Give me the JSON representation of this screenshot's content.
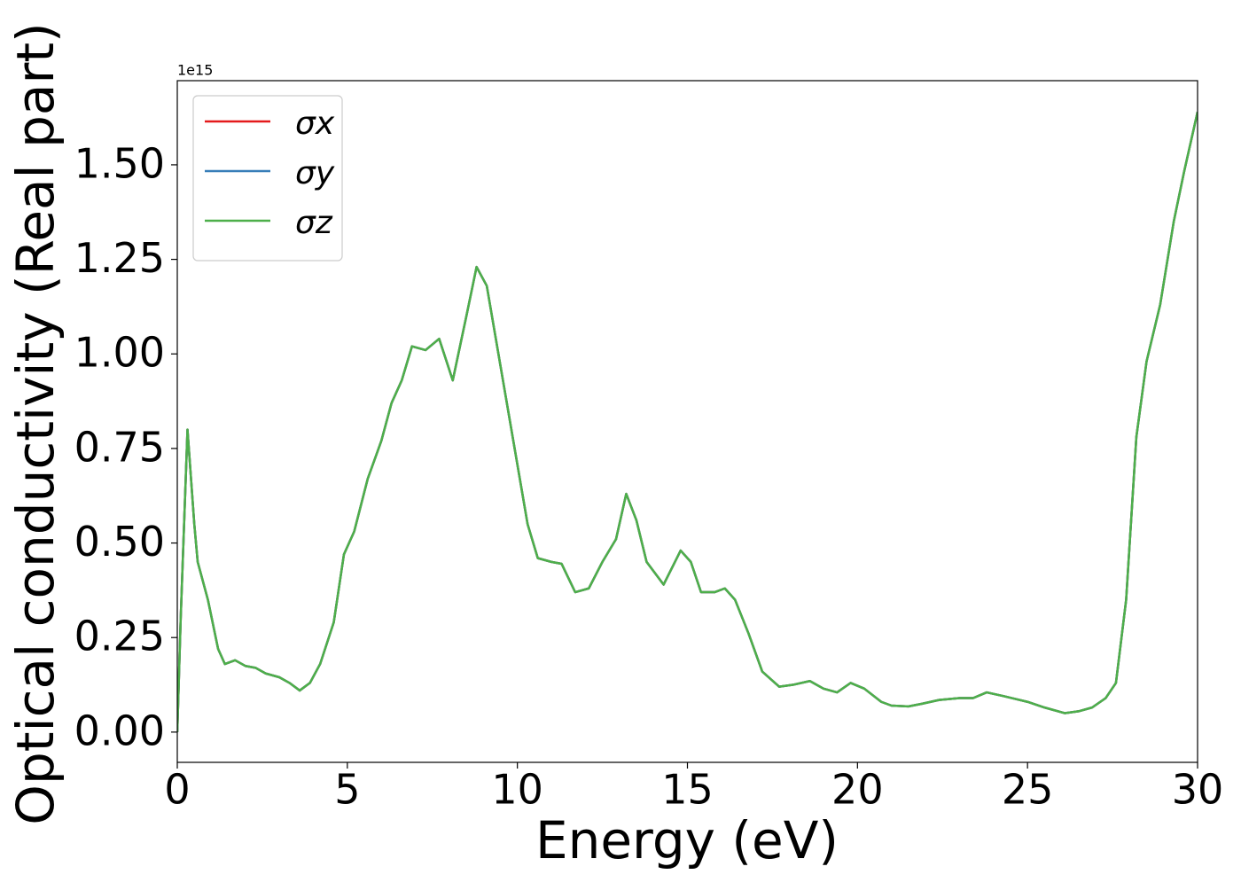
{
  "chart_data": {
    "type": "line",
    "xlabel": "Energy (eV)",
    "ylabel": "Optical conductivity (Real part)",
    "y_offset_label": "1e15",
    "x": [
      0,
      0.1,
      0.3,
      0.5,
      0.6,
      0.9,
      1.2,
      1.4,
      1.7,
      2.0,
      2.3,
      2.6,
      3.0,
      3.3,
      3.6,
      3.9,
      4.2,
      4.6,
      4.9,
      5.2,
      5.6,
      6.0,
      6.3,
      6.6,
      6.9,
      7.3,
      7.7,
      8.1,
      8.5,
      8.8,
      9.1,
      9.5,
      9.9,
      10.3,
      10.6,
      11.0,
      11.3,
      11.7,
      12.1,
      12.5,
      12.9,
      13.2,
      13.5,
      13.8,
      14.3,
      14.8,
      15.1,
      15.4,
      15.8,
      16.1,
      16.4,
      16.8,
      17.2,
      17.7,
      18.1,
      18.6,
      19.0,
      19.4,
      19.8,
      20.2,
      20.7,
      21.0,
      21.5,
      21.9,
      22.4,
      23.0,
      23.4,
      23.8,
      24.3,
      25.0,
      25.5,
      26.1,
      26.5,
      26.9,
      27.3,
      27.6,
      27.9,
      28.2,
      28.5,
      28.9,
      29.3,
      29.6,
      30.0
    ],
    "series": [
      {
        "name": "σx",
        "color": "#e41a1c",
        "values": [
          0.0,
          0.3,
          0.8,
          0.55,
          0.45,
          0.35,
          0.22,
          0.18,
          0.19,
          0.175,
          0.17,
          0.155,
          0.145,
          0.13,
          0.11,
          0.13,
          0.18,
          0.29,
          0.47,
          0.53,
          0.67,
          0.77,
          0.87,
          0.93,
          1.02,
          1.01,
          1.04,
          0.93,
          1.1,
          1.23,
          1.18,
          0.97,
          0.76,
          0.55,
          0.46,
          0.45,
          0.445,
          0.37,
          0.38,
          0.45,
          0.51,
          0.63,
          0.56,
          0.45,
          0.39,
          0.48,
          0.45,
          0.37,
          0.37,
          0.38,
          0.35,
          0.26,
          0.16,
          0.12,
          0.125,
          0.135,
          0.115,
          0.105,
          0.13,
          0.115,
          0.08,
          0.07,
          0.068,
          0.075,
          0.085,
          0.09,
          0.09,
          0.105,
          0.095,
          0.08,
          0.065,
          0.05,
          0.055,
          0.065,
          0.09,
          0.13,
          0.35,
          0.78,
          0.98,
          1.13,
          1.35,
          1.48,
          1.64
        ]
      },
      {
        "name": "σy",
        "color": "#377eb8",
        "values": [
          0.0,
          0.3,
          0.8,
          0.55,
          0.45,
          0.35,
          0.22,
          0.18,
          0.19,
          0.175,
          0.17,
          0.155,
          0.145,
          0.13,
          0.11,
          0.13,
          0.18,
          0.29,
          0.47,
          0.53,
          0.67,
          0.77,
          0.87,
          0.93,
          1.02,
          1.01,
          1.04,
          0.93,
          1.1,
          1.23,
          1.18,
          0.97,
          0.76,
          0.55,
          0.46,
          0.45,
          0.445,
          0.37,
          0.38,
          0.45,
          0.51,
          0.63,
          0.56,
          0.45,
          0.39,
          0.48,
          0.45,
          0.37,
          0.37,
          0.38,
          0.35,
          0.26,
          0.16,
          0.12,
          0.125,
          0.135,
          0.115,
          0.105,
          0.13,
          0.115,
          0.08,
          0.07,
          0.068,
          0.075,
          0.085,
          0.09,
          0.09,
          0.105,
          0.095,
          0.08,
          0.065,
          0.05,
          0.055,
          0.065,
          0.09,
          0.13,
          0.35,
          0.78,
          0.98,
          1.13,
          1.35,
          1.48,
          1.64
        ]
      },
      {
        "name": "σz",
        "color": "#4daf4a",
        "values": [
          0.0,
          0.3,
          0.8,
          0.55,
          0.45,
          0.35,
          0.22,
          0.18,
          0.19,
          0.175,
          0.17,
          0.155,
          0.145,
          0.13,
          0.11,
          0.13,
          0.18,
          0.29,
          0.47,
          0.53,
          0.67,
          0.77,
          0.87,
          0.93,
          1.02,
          1.01,
          1.04,
          0.93,
          1.1,
          1.23,
          1.18,
          0.97,
          0.76,
          0.55,
          0.46,
          0.45,
          0.445,
          0.37,
          0.38,
          0.45,
          0.51,
          0.63,
          0.56,
          0.45,
          0.39,
          0.48,
          0.45,
          0.37,
          0.37,
          0.38,
          0.35,
          0.26,
          0.16,
          0.12,
          0.125,
          0.135,
          0.115,
          0.105,
          0.13,
          0.115,
          0.08,
          0.07,
          0.068,
          0.075,
          0.085,
          0.09,
          0.09,
          0.105,
          0.095,
          0.08,
          0.065,
          0.05,
          0.055,
          0.065,
          0.09,
          0.13,
          0.35,
          0.78,
          0.98,
          1.13,
          1.35,
          1.48,
          1.64
        ]
      }
    ],
    "xlim": [
      0,
      30
    ],
    "xticks": [
      0,
      5,
      10,
      15,
      20,
      25,
      30
    ],
    "ylim": [
      -0.08,
      1.7225
    ],
    "yticks": [
      {
        "value": 0,
        "label": "0.00"
      },
      {
        "value": 0.25,
        "label": "0.25"
      },
      {
        "value": 0.5,
        "label": "0.50"
      },
      {
        "value": 0.75,
        "label": "0.75"
      },
      {
        "value": 1.0,
        "label": "1.00"
      },
      {
        "value": 1.25,
        "label": "1.25"
      },
      {
        "value": 1.5,
        "label": "1.50"
      }
    ],
    "grid": false,
    "legend": "upper left"
  }
}
